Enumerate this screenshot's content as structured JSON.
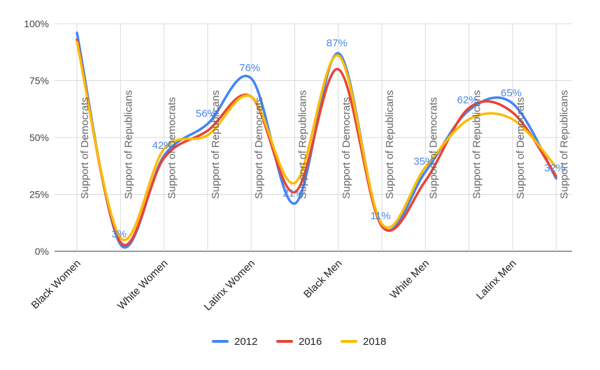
{
  "chart_data": {
    "type": "line",
    "smooth": true,
    "categories": [
      "Black Women",
      "",
      "White Women",
      "",
      "Latinx Women",
      "",
      "Black Men",
      "",
      "White Men",
      "",
      "Latinx Men",
      ""
    ],
    "x_tick_labels": [
      "Black Women",
      "White Women",
      "Latinx Women",
      "Black Men",
      "White Men",
      "Latinx Men"
    ],
    "point_annotations": [
      "Support of Democrats",
      "Support of Republicans",
      "Support of Democrats",
      "Support of Republicans",
      "Support of Democrats",
      "Support of Republicans",
      "Support of Democrats",
      "Support of Republicans",
      "Support of Democrats",
      "Support of Republicans",
      "Support of Democrats",
      "Support of Republicans"
    ],
    "series": [
      {
        "name": "2012",
        "color": "#4285f4",
        "values": [
          96,
          3,
          42,
          56,
          76,
          21,
          87,
          11,
          35,
          62,
          65,
          32
        ]
      },
      {
        "name": "2016",
        "color": "#ea4335",
        "values": [
          93,
          4,
          41,
          53,
          68,
          26,
          80,
          11,
          31,
          63,
          61,
          33
        ]
      },
      {
        "name": "2018",
        "color": "#fbbc04",
        "values": [
          92,
          6,
          45,
          51,
          68,
          30,
          86,
          12,
          37,
          58,
          58,
          37
        ]
      }
    ],
    "data_labels": [
      "",
      "3%",
      "42%",
      "56%",
      "76%",
      "21%",
      "87%",
      "11%",
      "35%",
      "62%",
      "65%",
      "32%"
    ],
    "y_ticks": [
      "0%",
      "25%",
      "50%",
      "75%",
      "100%"
    ],
    "ylim": [
      0,
      100
    ],
    "grid": true,
    "legend_position": "bottom"
  }
}
